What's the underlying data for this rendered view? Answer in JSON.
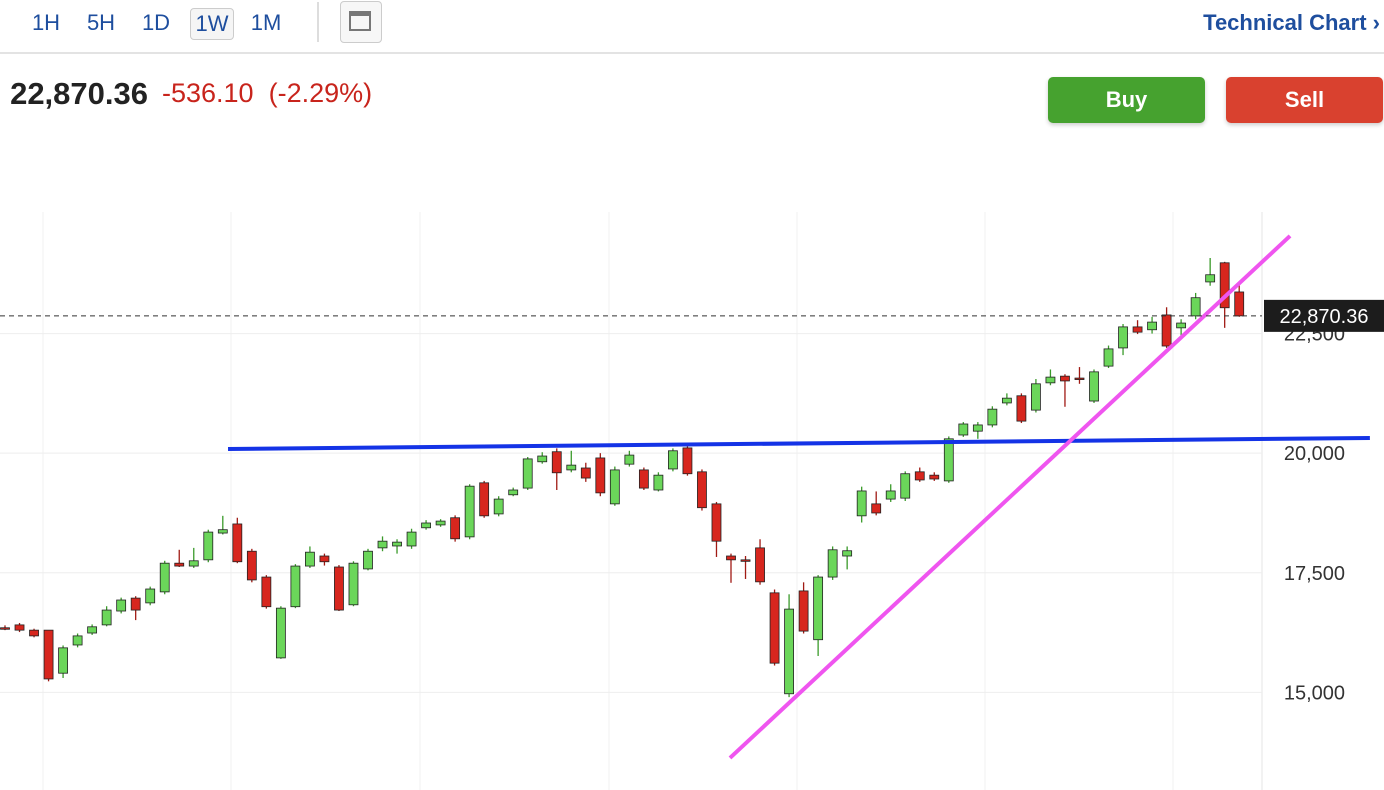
{
  "toolbar": {
    "tabs": [
      "1H",
      "5H",
      "1D",
      "1W",
      "1M"
    ],
    "link": "Technical Chart ›"
  },
  "quote": {
    "last": "22,870.36",
    "change": "-536.10",
    "change_pct": "(-2.29%)",
    "buy": "Buy",
    "sell": "Sell"
  },
  "chart_data": {
    "type": "candlestick",
    "up_color": "#6bd65a",
    "down_color": "#d7261e",
    "ylim": [
      13000,
      25000
    ],
    "yticks": [
      {
        "value": 15000,
        "label": "15,000"
      },
      {
        "value": 17500,
        "label": "17,500"
      },
      {
        "value": 20000,
        "label": "20,000"
      },
      {
        "value": 22500,
        "label": "22,500"
      }
    ],
    "grid": true,
    "last_price": {
      "value": 22870.36,
      "label": "22,870.36"
    },
    "open": [
      16350,
      16410,
      16300,
      16300,
      15400,
      15990,
      16240,
      16410,
      16700,
      16970,
      16870,
      17100,
      17700,
      17640,
      17770,
      18330,
      18520,
      17950,
      17410,
      15720,
      16790,
      17640,
      17850,
      17620,
      16830,
      17580,
      18020,
      18060,
      18060,
      18440,
      18500,
      18650,
      18250,
      19380,
      18730,
      19130,
      19270,
      19820,
      20030,
      19650,
      19690,
      19900,
      18940,
      19770,
      19650,
      19230,
      19670,
      20110,
      19610,
      18940,
      17850,
      17770,
      18020,
      17080,
      14970,
      17120,
      16100,
      17410,
      17850,
      18690,
      18940,
      19040,
      19060,
      19610,
      19540,
      19420,
      20380,
      20460,
      20590,
      21050,
      21200,
      20900,
      21470,
      21610,
      21570,
      21090,
      21820,
      22200,
      22640,
      22580,
      22890,
      22620,
      22870,
      23580,
      23980,
      23370
    ],
    "high": [
      16400,
      16450,
      16330,
      16300,
      15980,
      16230,
      16420,
      16800,
      16980,
      17010,
      17210,
      17750,
      17980,
      18020,
      18400,
      18690,
      18650,
      18000,
      17450,
      16800,
      17680,
      18050,
      17900,
      17660,
      17740,
      18000,
      18260,
      18200,
      18420,
      18600,
      18620,
      18700,
      19350,
      19420,
      19100,
      19280,
      19920,
      20020,
      20100,
      20050,
      19800,
      20000,
      19720,
      20050,
      19700,
      19600,
      20100,
      20150,
      19660,
      18980,
      17900,
      17850,
      18200,
      17150,
      17050,
      17300,
      17450,
      18050,
      18050,
      19300,
      19200,
      19350,
      19620,
      19700,
      19600,
      20350,
      20650,
      20650,
      20980,
      21250,
      21250,
      21550,
      21750,
      21650,
      21800,
      21750,
      22250,
      22700,
      22780,
      22850,
      23050,
      22800,
      23350,
      24080,
      24000,
      23520
    ],
    "low": [
      16300,
      16260,
      16150,
      15230,
      15300,
      15940,
      16200,
      16380,
      16650,
      16510,
      16820,
      17050,
      17620,
      17600,
      17720,
      18300,
      17700,
      17300,
      16750,
      15700,
      16760,
      17600,
      17650,
      16700,
      16800,
      17550,
      17950,
      17900,
      18000,
      18400,
      18460,
      18150,
      18200,
      18650,
      18680,
      19100,
      19230,
      19780,
      19230,
      19600,
      19400,
      19100,
      18900,
      19720,
      19230,
      19200,
      19620,
      19530,
      18800,
      17830,
      17290,
      17370,
      17250,
      15560,
      14900,
      16230,
      15760,
      17350,
      17570,
      18550,
      18700,
      18980,
      19000,
      19400,
      19420,
      19380,
      20340,
      20300,
      20540,
      21000,
      20630,
      20850,
      21420,
      20970,
      21450,
      21050,
      21780,
      22050,
      22490,
      22500,
      22200,
      22400,
      22800,
      23500,
      22620,
      22850
    ],
    "close": [
      16340,
      16300,
      16180,
      15280,
      15930,
      16180,
      16370,
      16720,
      16930,
      16720,
      17160,
      17700,
      17640,
      17750,
      18350,
      18400,
      17730,
      17350,
      16790,
      16760,
      17640,
      17930,
      17730,
      16720,
      17700,
      17950,
      18160,
      18140,
      18350,
      18540,
      18580,
      18210,
      19310,
      18690,
      19040,
      19230,
      19880,
      19940,
      19590,
      19750,
      19480,
      19170,
      19650,
      19960,
      19270,
      19540,
      20050,
      19570,
      18860,
      18160,
      17770,
      17760,
      17310,
      15610,
      16740,
      16280,
      17410,
      17980,
      17960,
      19210,
      18750,
      19210,
      19570,
      19440,
      19460,
      20300,
      20610,
      20590,
      20920,
      21150,
      20670,
      21450,
      21590,
      21510,
      21550,
      21700,
      22180,
      22640,
      22530,
      22740,
      22240,
      22720,
      23250,
      23730,
      23040,
      22870.36
    ],
    "trendlines": [
      {
        "color": "#1433e6",
        "x": [
          15.36,
          94.0
        ],
        "values": [
          20088,
          20318
        ]
      },
      {
        "color": "#ef55ef",
        "x": [
          49.93,
          88.5
        ],
        "values": [
          13628,
          24541
        ]
      }
    ]
  }
}
